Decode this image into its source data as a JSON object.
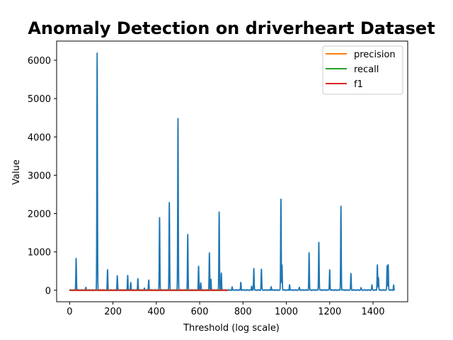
{
  "chart_data": {
    "type": "line",
    "title": "Anomaly Detection on driverheart Dataset",
    "xlabel": "Threshold (log scale)",
    "ylabel": "Value",
    "xlim": [
      -60,
      1560
    ],
    "ylim": [
      -300,
      6500
    ],
    "xticks": [
      0,
      200,
      400,
      600,
      800,
      1000,
      1200,
      1400
    ],
    "yticks": [
      0,
      1000,
      2000,
      3000,
      4000,
      5000,
      6000
    ],
    "grid": false,
    "legend_position": "top-right",
    "series": [
      {
        "name": "",
        "color": "#1f77b4",
        "baseline": 5,
        "x_range": [
          0,
          1500
        ],
        "peaks": [
          [
            30,
            830
          ],
          [
            75,
            80
          ],
          [
            127,
            6180
          ],
          [
            175,
            530
          ],
          [
            220,
            380
          ],
          [
            268,
            385
          ],
          [
            282,
            200
          ],
          [
            315,
            300
          ],
          [
            345,
            50
          ],
          [
            365,
            260
          ],
          [
            415,
            1890
          ],
          [
            460,
            2290
          ],
          [
            500,
            4480
          ],
          [
            545,
            1450
          ],
          [
            595,
            620
          ],
          [
            605,
            200
          ],
          [
            645,
            970
          ],
          [
            652,
            280
          ],
          [
            690,
            2050
          ],
          [
            700,
            440
          ],
          [
            750,
            80
          ],
          [
            790,
            200
          ],
          [
            840,
            100
          ],
          [
            850,
            570
          ],
          [
            885,
            550
          ],
          [
            930,
            90
          ],
          [
            975,
            2380
          ],
          [
            980,
            660
          ],
          [
            1015,
            140
          ],
          [
            1060,
            80
          ],
          [
            1105,
            970
          ],
          [
            1150,
            1260
          ],
          [
            1200,
            540
          ],
          [
            1252,
            2190
          ],
          [
            1298,
            440
          ],
          [
            1345,
            70
          ],
          [
            1395,
            140
          ],
          [
            1420,
            660
          ],
          [
            1425,
            330
          ],
          [
            1465,
            640
          ],
          [
            1470,
            670
          ],
          [
            1495,
            130
          ]
        ]
      },
      {
        "name": "precision",
        "color": "#ff7f0e",
        "x": [
          0,
          730
        ],
        "values": [
          0,
          0
        ]
      },
      {
        "name": "recall",
        "color": "#2ca02c",
        "x": [
          0,
          730
        ],
        "values": [
          0,
          0
        ]
      },
      {
        "name": "f1",
        "color": "#d62728",
        "x": [
          0,
          730
        ],
        "values": [
          0,
          0
        ]
      }
    ]
  }
}
